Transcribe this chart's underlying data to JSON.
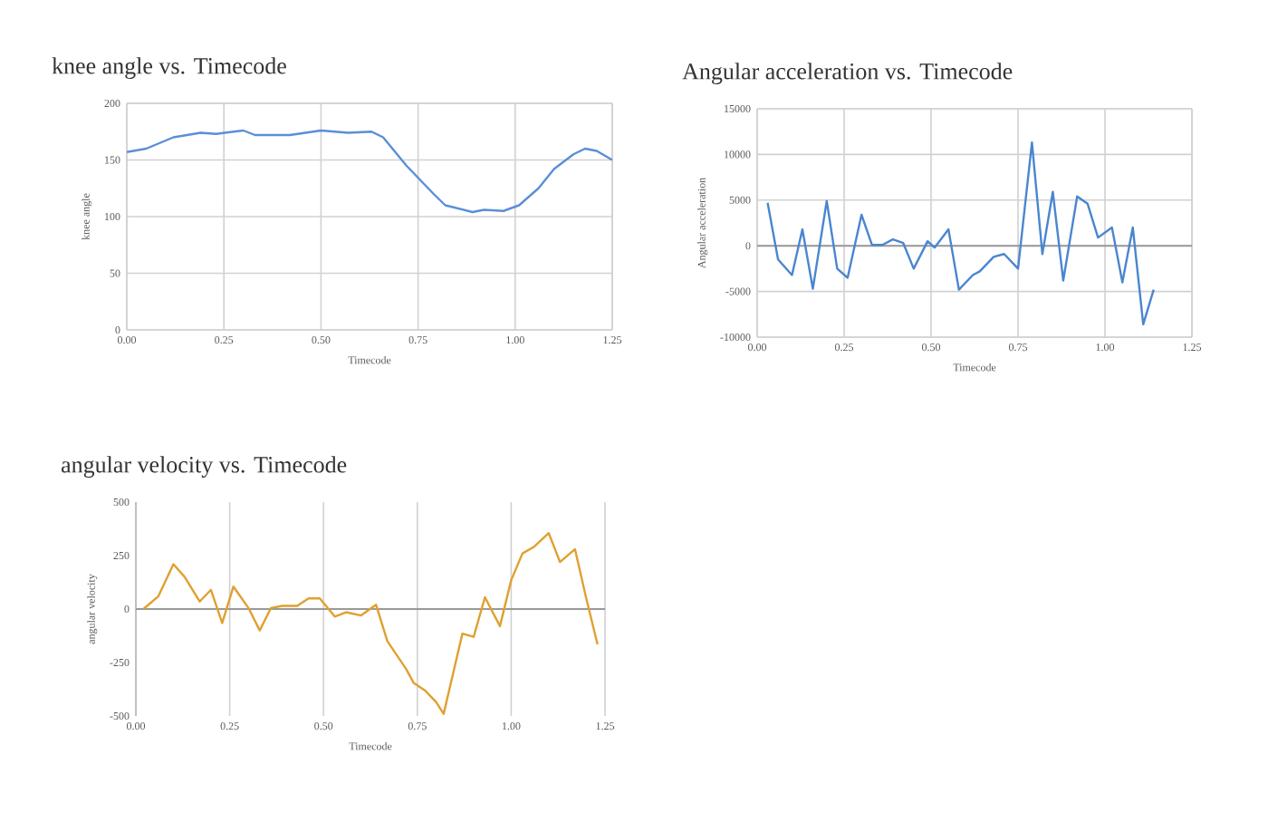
{
  "chart_data": [
    {
      "type": "line",
      "title": "knee angle vs. Timecode",
      "xlabel": "Timecode",
      "ylabel": "knee angle",
      "color": "#5b8fd6",
      "grid": true,
      "xlim": [
        0,
        1.25
      ],
      "xticks": [
        {
          "value": 0,
          "label": "0.00"
        },
        {
          "value": 0.25,
          "label": "0.25"
        },
        {
          "value": 0.5,
          "label": "0.50"
        },
        {
          "value": 0.75,
          "label": "0.75"
        },
        {
          "value": 1,
          "label": "1.00"
        },
        {
          "value": 1.25,
          "label": "1.25"
        }
      ],
      "ylim": [
        0,
        200
      ],
      "yticks": [
        0,
        50,
        100,
        150,
        200
      ],
      "x": [
        0,
        0.05,
        0.12,
        0.19,
        0.23,
        0.3,
        0.33,
        0.42,
        0.5,
        0.57,
        0.63,
        0.66,
        0.72,
        0.79,
        0.82,
        0.89,
        0.92,
        0.97,
        1.01,
        1.06,
        1.1,
        1.15,
        1.18,
        1.21,
        1.25
      ],
      "values": [
        157,
        160,
        170,
        174,
        173,
        176,
        172,
        172,
        176,
        174,
        175,
        170,
        145,
        120,
        110,
        104,
        106,
        105,
        110,
        125,
        142,
        155,
        160,
        158,
        150
      ]
    },
    {
      "type": "line",
      "title": "Angular acceleration vs. Timecode",
      "xlabel": "Timecode",
      "ylabel": "Angular acceleration",
      "color": "#4a86cf",
      "grid": true,
      "xlim": [
        0,
        1.25
      ],
      "xticks": [
        {
          "value": 0,
          "label": "0.00"
        },
        {
          "value": 0.25,
          "label": "0.25"
        },
        {
          "value": 0.5,
          "label": "0.50"
        },
        {
          "value": 0.75,
          "label": "0.75"
        },
        {
          "value": 1,
          "label": "1.00"
        },
        {
          "value": 1.25,
          "label": "1.25"
        }
      ],
      "ylim": [
        -10000,
        15000
      ],
      "yticks": [
        -10000,
        -5000,
        0,
        5000,
        10000,
        15000
      ],
      "x": [
        0.03,
        0.06,
        0.1,
        0.13,
        0.16,
        0.2,
        0.23,
        0.26,
        0.3,
        0.33,
        0.36,
        0.39,
        0.42,
        0.45,
        0.49,
        0.51,
        0.55,
        0.58,
        0.62,
        0.64,
        0.68,
        0.71,
        0.75,
        0.79,
        0.82,
        0.85,
        0.88,
        0.92,
        0.95,
        0.98,
        1.02,
        1.05,
        1.08,
        1.11,
        1.14
      ],
      "values": [
        4700,
        -1500,
        -3200,
        1800,
        -4700,
        4900,
        -2500,
        -3500,
        3400,
        100,
        100,
        700,
        300,
        -2500,
        500,
        -200,
        1800,
        -4800,
        -3200,
        -2800,
        -1200,
        -900,
        -2500,
        11300,
        -900,
        5900,
        -3800,
        5400,
        4600,
        900,
        2000,
        -4000,
        2000,
        -8600,
        -4800
      ]
    },
    {
      "type": "line",
      "title": "angular velocity vs. Timecode",
      "xlabel": "Timecode",
      "ylabel": "angular velocity",
      "color": "#e0a030",
      "grid": "x",
      "xlim": [
        0,
        1.25
      ],
      "xticks": [
        {
          "value": 0,
          "label": "0.00"
        },
        {
          "value": 0.25,
          "label": "0.25"
        },
        {
          "value": 0.5,
          "label": "0.50"
        },
        {
          "value": 0.75,
          "label": "0.75"
        },
        {
          "value": 1,
          "label": "1.00"
        },
        {
          "value": 1.25,
          "label": "1.25"
        }
      ],
      "ylim": [
        -500,
        500
      ],
      "yticks": [
        -500,
        -250,
        0,
        250,
        500
      ],
      "x": [
        0.02,
        0.06,
        0.1,
        0.13,
        0.17,
        0.2,
        0.23,
        0.26,
        0.3,
        0.33,
        0.36,
        0.39,
        0.43,
        0.46,
        0.49,
        0.53,
        0.56,
        0.6,
        0.64,
        0.67,
        0.72,
        0.74,
        0.77,
        0.8,
        0.82,
        0.87,
        0.9,
        0.93,
        0.97,
        1.0,
        1.03,
        1.06,
        1.1,
        1.13,
        1.17,
        1.2,
        1.23
      ],
      "values": [
        0,
        60,
        210,
        150,
        35,
        90,
        -65,
        105,
        5,
        -100,
        5,
        15,
        15,
        50,
        50,
        -35,
        -15,
        -30,
        20,
        -150,
        -280,
        -345,
        -380,
        -435,
        -490,
        -115,
        -130,
        55,
        -80,
        135,
        260,
        290,
        355,
        220,
        280,
        50,
        -165
      ]
    }
  ]
}
